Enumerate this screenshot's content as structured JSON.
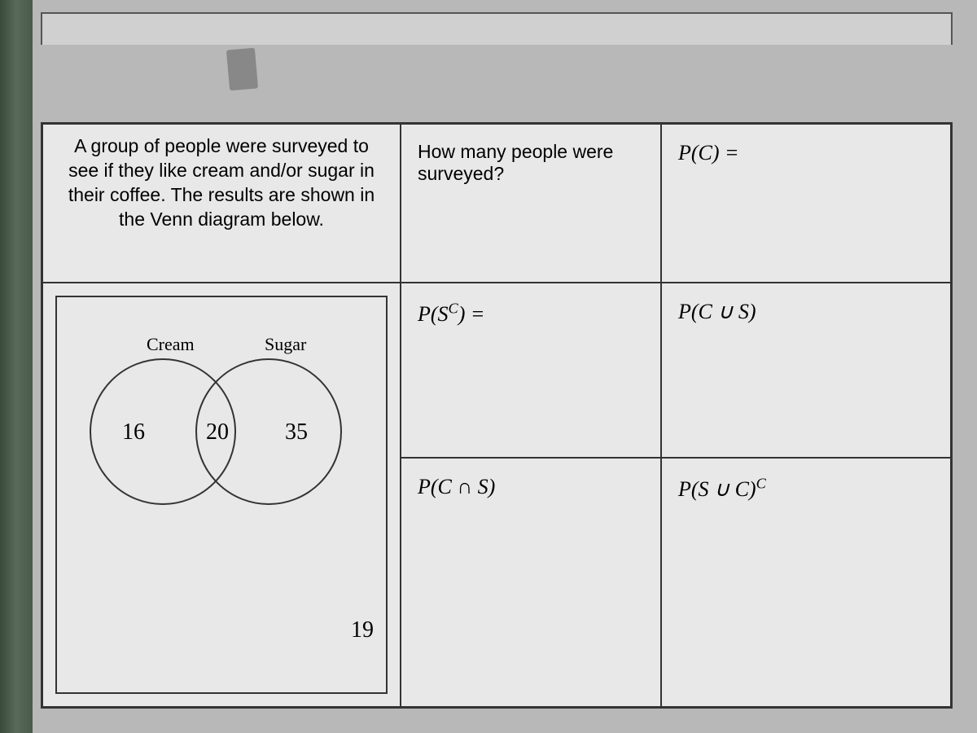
{
  "problem": {
    "text": "A group of people were surveyed to see if they like cream and/or sugar in their coffee. The results are shown in the Venn diagram below."
  },
  "venn": {
    "label_left": "Cream",
    "label_right": "Sugar",
    "value_left_only": "16",
    "value_intersection": "20",
    "value_right_only": "35",
    "value_outside": "19",
    "circle_border_color": "#333333",
    "background_color": "#e8e8e8",
    "label_fontsize": 22,
    "number_fontsize": 28
  },
  "questions": {
    "q1": {
      "text": "How many people were surveyed?"
    },
    "q2": {
      "label_html": "P(C) ="
    },
    "q3": {
      "label_html": "P(S<sup>C</sup>) ="
    },
    "q4": {
      "label_html": "P(C ∪ S)"
    },
    "q5": {
      "label_html": "P(C ∩ S)"
    },
    "q6": {
      "label_html": "P(S ∪ C)<sup>C</sup>"
    }
  },
  "colors": {
    "page_background": "#e8e8e8",
    "outer_background": "#b8b8b8",
    "border": "#333333",
    "binding": "#4a5a4a"
  },
  "layout": {
    "grid_columns": [
      440,
      320,
      "1fr"
    ],
    "grid_rows": [
      195,
      215,
      "1fr"
    ]
  }
}
